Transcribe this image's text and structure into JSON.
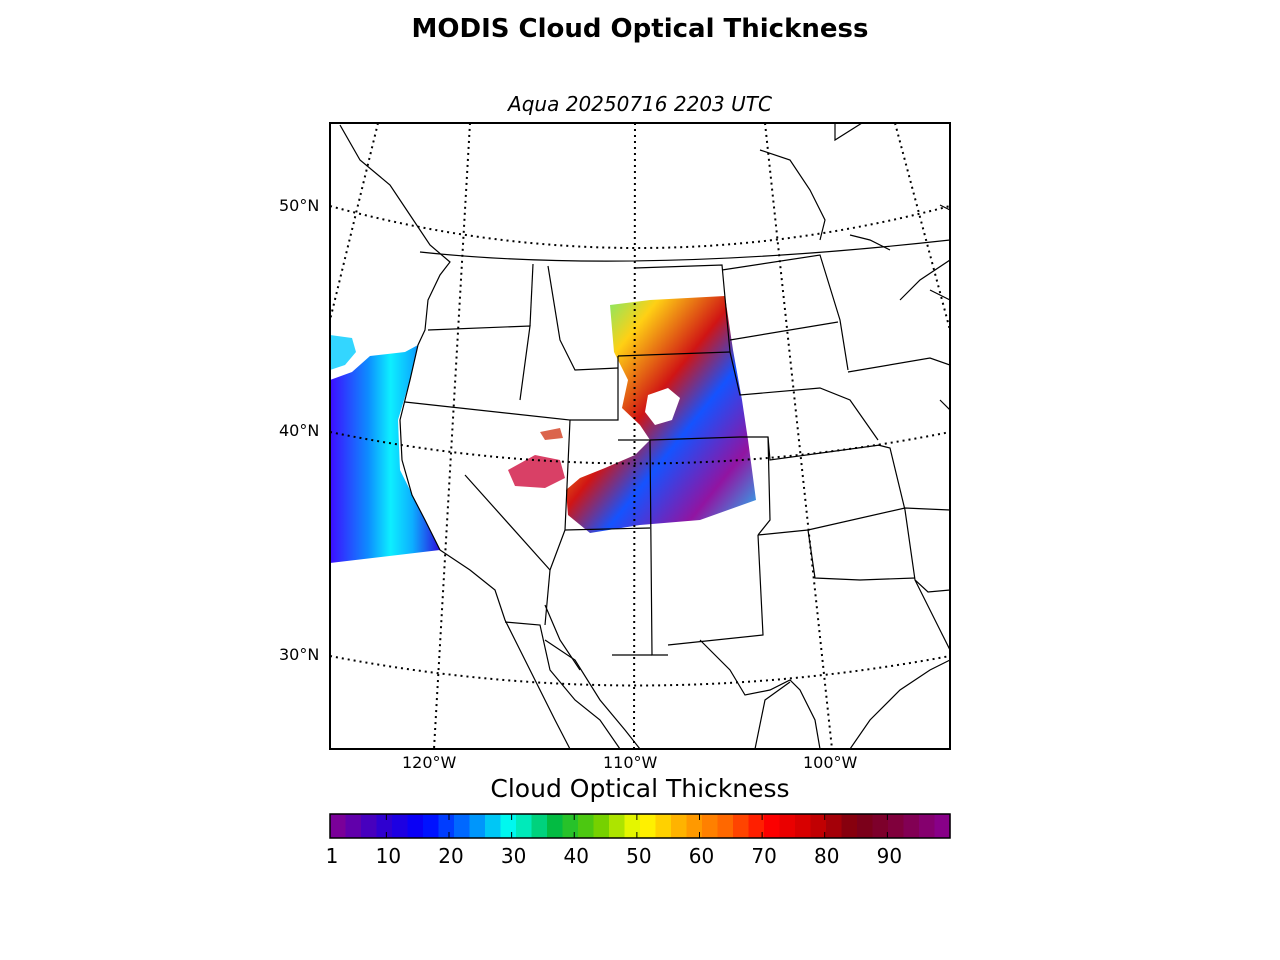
{
  "title": "MODIS Cloud Optical Thickness",
  "subtitle": "Aqua 20250716 2203 UTC",
  "map": {
    "lat_labels": [
      "50°N",
      "40°N",
      "30°N"
    ],
    "lon_labels": [
      "120°W",
      "110°W",
      "100°W"
    ]
  },
  "colorbar": {
    "title": "Cloud Optical Thickness",
    "ticks": [
      "1",
      "10",
      "20",
      "30",
      "40",
      "50",
      "60",
      "70",
      "80",
      "90"
    ],
    "tick_values": [
      1,
      10,
      20,
      30,
      40,
      50,
      60,
      70,
      80,
      90
    ],
    "range": [
      1,
      100
    ],
    "colors": [
      "#7a0099",
      "#3300cc",
      "#0000ff",
      "#0077ff",
      "#00ffee",
      "#00bb44",
      "#66cc00",
      "#ffff00",
      "#ffaa00",
      "#ff6600",
      "#ff0000",
      "#cc0000",
      "#7a0010",
      "#800040",
      "#880088"
    ]
  }
}
